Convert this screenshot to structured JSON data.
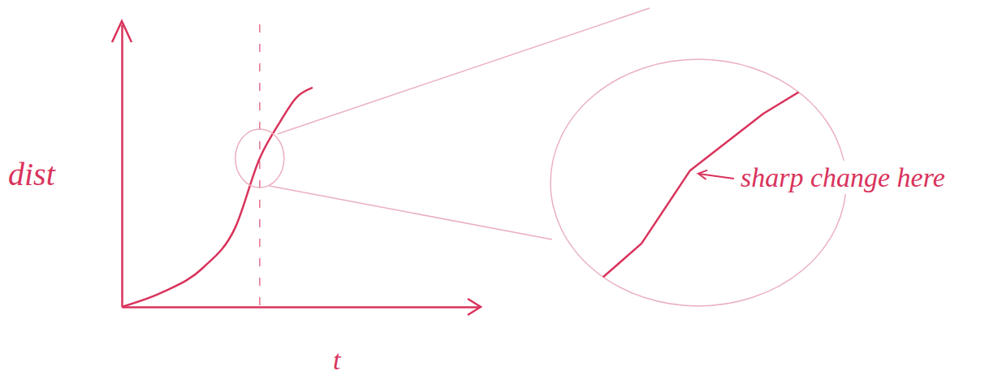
{
  "chart_data": [
    {
      "type": "line",
      "x_label": "t",
      "y_label": "dist",
      "x": [
        0,
        1.14,
        2.27,
        3.18,
        3.86,
        4.43,
        4.89,
        5.34
      ],
      "values": [
        0,
        0.52,
        1.38,
        2.82,
        5.26,
        6.55,
        7.41,
        7.76
      ],
      "color": "#d9335c",
      "xlim": [
        0,
        10
      ],
      "ylim": [
        0,
        10
      ],
      "vline": 3.86,
      "tick_labels": false
    },
    {
      "type": "line",
      "x": [
        0.29,
        2.65,
        4.41,
        7.06,
        9.71
      ],
      "values": [
        0.33,
        2.67,
        5.67,
        8.0,
        9.83
      ],
      "color": "#d9335c",
      "xlim": [
        0,
        10
      ],
      "ylim": [
        0,
        10
      ],
      "annotation": {
        "text": "sharp change here",
        "x": 4.41,
        "y": 5.67
      },
      "tick_labels": false
    }
  ]
}
